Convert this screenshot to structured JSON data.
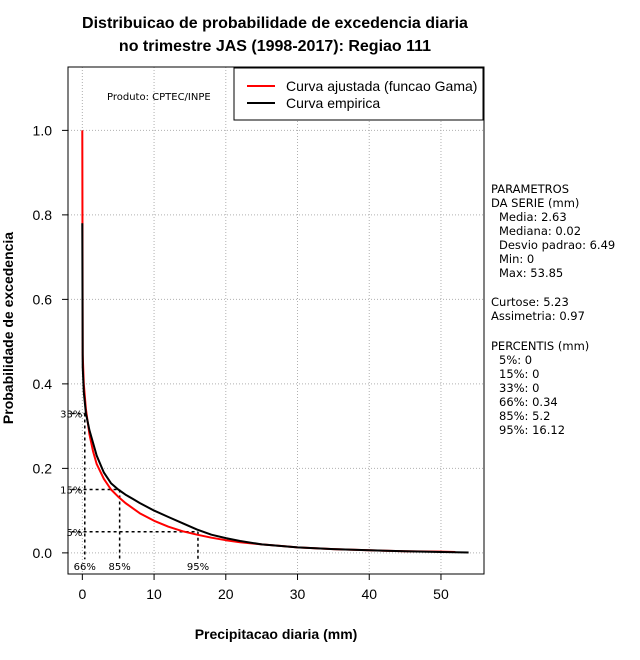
{
  "chart_data": {
    "type": "line",
    "title": [
      "Distribuicao de probabilidade de excedencia diaria",
      "no trimestre JAS (1998-2017): Regiao 111"
    ],
    "xlabel": "Precipitacao diaria (mm)",
    "ylabel": "Probabilidade de excedencia",
    "xlim": [
      -2,
      56
    ],
    "ylim": [
      -0.05,
      1.15
    ],
    "xticks": [
      0,
      10,
      20,
      30,
      40,
      50
    ],
    "yticks": [
      0.0,
      0.2,
      0.4,
      0.6,
      0.8,
      1.0
    ],
    "xtick_labels": [
      "0",
      "10",
      "20",
      "30",
      "40",
      "50"
    ],
    "ytick_labels": [
      "0.0",
      "0.2",
      "0.4",
      "0.6",
      "0.8",
      "1.0"
    ],
    "grid": true,
    "product_note": "Produto: CPTEC/INPE",
    "legend": {
      "position": "top-right",
      "entries": [
        {
          "label": "Curva ajustada (funcao Gama)",
          "color": "#ff0000"
        },
        {
          "label": "Curva empirica",
          "color": "#000000"
        }
      ]
    },
    "series": [
      {
        "name": "Curva ajustada (funcao Gama)",
        "color": "#ff0000",
        "x": [
          0,
          0.05,
          0.2,
          0.5,
          1,
          1.5,
          2,
          3,
          4,
          5,
          6,
          8,
          10,
          12,
          14,
          16,
          18,
          20,
          22,
          25,
          28,
          30,
          35,
          40,
          45,
          50,
          52
        ],
        "y": [
          1.0,
          0.47,
          0.4,
          0.34,
          0.28,
          0.24,
          0.21,
          0.175,
          0.15,
          0.133,
          0.118,
          0.094,
          0.076,
          0.062,
          0.051,
          0.043,
          0.036,
          0.03,
          0.025,
          0.02,
          0.016,
          0.013,
          0.009,
          0.006,
          0.004,
          0.003,
          0.002
        ]
      },
      {
        "name": "Curva empirica",
        "color": "#000000",
        "x": [
          0,
          0.05,
          0.2,
          0.5,
          1,
          1.5,
          2,
          3,
          4,
          5,
          6,
          7,
          8,
          10,
          12,
          14,
          16,
          18,
          20,
          22,
          25,
          30,
          35,
          40,
          45,
          50,
          53.85
        ],
        "y": [
          0.78,
          0.44,
          0.38,
          0.33,
          0.29,
          0.26,
          0.23,
          0.19,
          0.165,
          0.15,
          0.138,
          0.128,
          0.118,
          0.1,
          0.085,
          0.07,
          0.055,
          0.043,
          0.035,
          0.028,
          0.02,
          0.013,
          0.009,
          0.006,
          0.004,
          0.002,
          0.001
        ]
      }
    ],
    "percentile_markers": [
      {
        "label": "66%",
        "y_label": "33%",
        "x": 0.34,
        "y": 0.33
      },
      {
        "label": "85%",
        "y_label": "15%",
        "x": 5.2,
        "y": 0.15
      },
      {
        "label": "95%",
        "y_label": "5%",
        "x": 16.12,
        "y": 0.05
      }
    ],
    "stats": {
      "header": [
        "PARAMETROS",
        "DA SERIE (mm)"
      ],
      "lines": [
        "Media: 2.63",
        "Mediana: 0.02",
        "Desvio padrao: 6.49",
        "Min: 0",
        "Max: 53.85"
      ],
      "moments": [
        "Curtose: 5.23",
        "Assimetria: 0.97"
      ],
      "percentile_header": "PERCENTIS (mm)",
      "percentiles": [
        "5%: 0",
        "15%: 0",
        "33%: 0",
        "66%: 0.34",
        "85%: 5.2",
        "95%: 16.12"
      ]
    }
  }
}
